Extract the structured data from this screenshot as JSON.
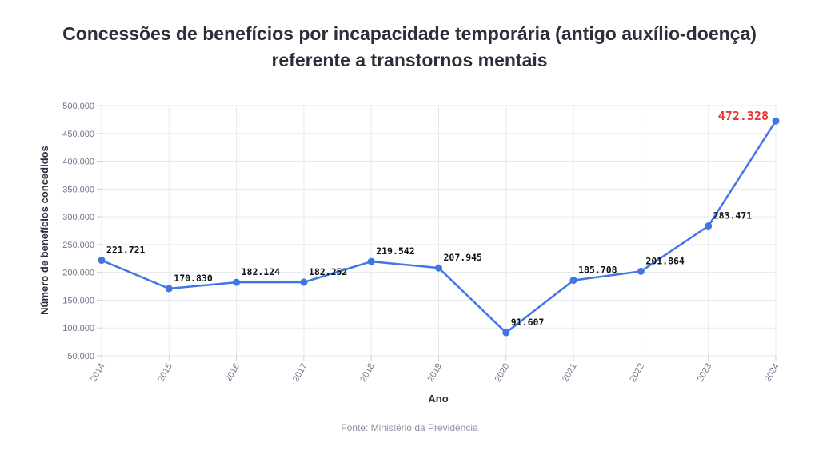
{
  "title_line1": "Concessões de benefícios por incapacidade temporária (antigo auxílio-doença)",
  "title_line2": "referente a transtornos mentais",
  "source": "Fonte: Ministério da Previdência",
  "colors": {
    "line": "#3f76e6",
    "highlight": "#e53935",
    "grid": "#e6e9ee"
  },
  "chart_data": {
    "type": "line",
    "xlabel": "Ano",
    "ylabel": "Número de benefícios concedidos",
    "ylim": [
      50000,
      500000
    ],
    "yticks": [
      50000,
      100000,
      150000,
      200000,
      250000,
      300000,
      350000,
      400000,
      450000,
      500000
    ],
    "ytick_labels": [
      "50.000",
      "100.000",
      "150.000",
      "200.000",
      "250.000",
      "300.000",
      "350.000",
      "400.000",
      "450.000",
      "500.000"
    ],
    "x": [
      "2014",
      "2015",
      "2016",
      "2017",
      "2018",
      "2019",
      "2020",
      "2021",
      "2022",
      "2023",
      "2024"
    ],
    "values": [
      221721,
      170830,
      182124,
      182252,
      219542,
      207945,
      91607,
      185708,
      201864,
      283471,
      472328
    ],
    "value_labels": [
      "221.721",
      "170.830",
      "182.124",
      "182.252",
      "219.542",
      "207.945",
      "91.607",
      "185.708",
      "201.864",
      "283.471",
      "472.328"
    ],
    "highlight_index": 10,
    "grid": true
  }
}
